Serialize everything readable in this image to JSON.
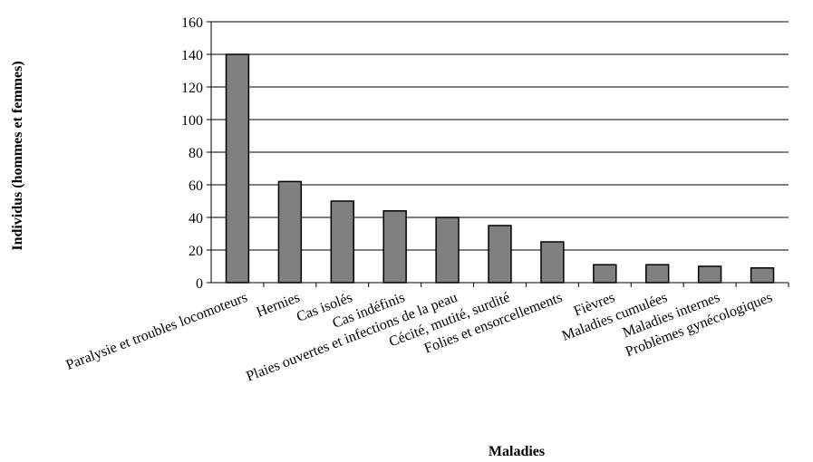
{
  "chart_data": {
    "type": "bar",
    "title": "",
    "xlabel": "Maladies",
    "ylabel": "Individus (hommes et femmes)",
    "ylim": [
      0,
      160
    ],
    "yticks": [
      0,
      20,
      40,
      60,
      80,
      100,
      120,
      140,
      160
    ],
    "grid": true,
    "legend": "none",
    "bar_color": "#808080",
    "categories": [
      "Paralysie et troubles locomoteurs",
      "Hernies",
      "Cas isolés",
      "Cas indéfinis",
      "Plaies ouvertes et infections de la peau",
      "Cécité, mutité, surdité",
      "Folies et ensorcellements",
      "Fièvres",
      "Maladies cumulées",
      "Maladies internes",
      "Problèmes gynécologiques"
    ],
    "values": [
      140,
      62,
      50,
      44,
      40,
      35,
      25,
      11,
      11,
      10,
      9
    ]
  }
}
